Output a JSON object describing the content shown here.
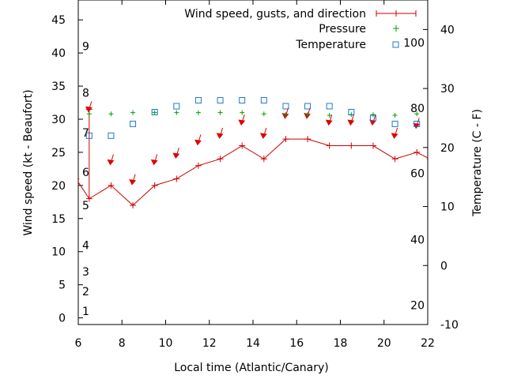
{
  "chart_data": {
    "type": "line",
    "xlabel": "Local time (Atlantic/Canary)",
    "ylabel_left": "Wind speed (kt - Beaufort)",
    "ylabel_right": "Temperature (C - F)",
    "xlim": [
      6,
      22
    ],
    "ylim_left": [
      -1,
      48
    ],
    "ylim_right": [
      -10,
      45
    ],
    "x_ticks": [
      "6",
      "8",
      "10",
      "12",
      "14",
      "16",
      "18",
      "20",
      "22"
    ],
    "y_left_ticks": [
      "0",
      "5",
      "10",
      "15",
      "20",
      "25",
      "30",
      "35",
      "40",
      "45"
    ],
    "y_right_ticks": [
      "-10",
      "0",
      "10",
      "20",
      "30",
      "40"
    ],
    "beaufort_labels": [
      {
        "text": "1",
        "kt": 1
      },
      {
        "text": "2",
        "kt": 4
      },
      {
        "text": "3",
        "kt": 7
      },
      {
        "text": "4",
        "kt": 11
      },
      {
        "text": "5",
        "kt": 17
      },
      {
        "text": "6",
        "kt": 22
      },
      {
        "text": "7",
        "kt": 28
      },
      {
        "text": "8",
        "kt": 34
      },
      {
        "text": "9",
        "kt": 41
      }
    ],
    "fahrenheit_labels": [
      {
        "text": "20",
        "c": -6.7
      },
      {
        "text": "40",
        "c": 4.4
      },
      {
        "text": "60",
        "c": 15.6
      },
      {
        "text": "80",
        "c": 26.7
      },
      {
        "text": "100",
        "c": 37.8
      }
    ],
    "legend": {
      "wind": "Wind speed, gusts, and direction",
      "pressure": "Pressure",
      "temperature": "Temperature"
    },
    "wind_speed": {
      "x": [
        5.9,
        6.5,
        7.5,
        8.5,
        9.5,
        10.5,
        11.5,
        12.5,
        13.5,
        14.5,
        15.5,
        16.5,
        17.5,
        18.5,
        19.5,
        20.5,
        21.5,
        22.1
      ],
      "y": [
        21,
        18,
        20,
        17,
        20,
        21,
        23,
        24,
        26,
        24,
        27,
        27,
        26,
        26,
        26,
        24,
        25,
        24
      ]
    },
    "gust": {
      "x": 6.5,
      "low": 18,
      "high": 31.5
    },
    "direction_arrows": {
      "x": [
        6.5,
        7.5,
        8.5,
        9.5,
        10.5,
        11.5,
        12.5,
        13.5,
        14.5,
        15.5,
        16.5,
        17.5,
        18.5,
        19.5,
        20.5,
        21.5
      ],
      "y": [
        31.5,
        23.5,
        20.5,
        23.5,
        24.5,
        26.5,
        27.5,
        29.5,
        27.5,
        30.5,
        30.5,
        29.5,
        29.5,
        29.5,
        27.5,
        29.0
      ]
    },
    "pressure_markers": {
      "x": [
        6.5,
        7.5,
        8.5,
        9.5,
        10.5,
        11.5,
        12.5,
        13.5,
        14.5,
        15.5,
        16.5,
        17.5,
        18.5,
        19.5,
        20.5,
        21.5
      ],
      "y": [
        30.8,
        30.8,
        31.0,
        31.0,
        31.0,
        31.0,
        31.0,
        31.0,
        30.8,
        30.7,
        30.7,
        30.6,
        30.7,
        30.7,
        30.6,
        30.8
      ]
    },
    "temperature": {
      "x": [
        6.5,
        7.5,
        8.5,
        9.5,
        10.5,
        11.5,
        12.5,
        13.5,
        14.5,
        15.5,
        16.5,
        17.5,
        18.5,
        19.5,
        20.5,
        21.5
      ],
      "c": [
        22.0,
        22.0,
        24.0,
        26.0,
        27.0,
        28.0,
        28.0,
        28.0,
        28.0,
        27.0,
        27.0,
        27.0,
        26.0,
        25.0,
        24.0,
        24.0
      ]
    },
    "colors": {
      "wind": "#cc0000",
      "arrow": "#dd0000",
      "pressure": "#00a000",
      "temperature": "#1f78d1",
      "axis": "#000000"
    }
  }
}
